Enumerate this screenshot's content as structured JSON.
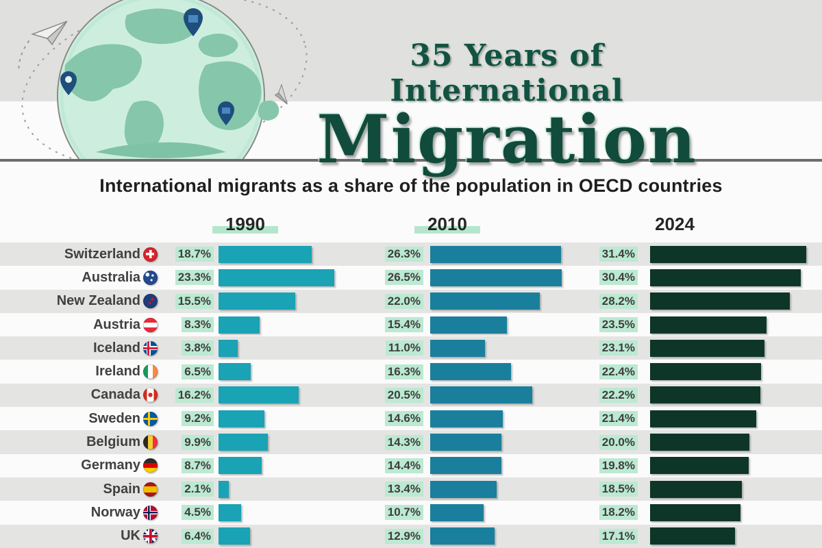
{
  "header": {
    "title_line1": "35 Years of International",
    "title_line2": "Migration",
    "illustration": {
      "globe_icon": "globe-with-continents",
      "pin_icon": "location-pin",
      "pin_count": 3,
      "plane_icon": "paper-plane",
      "orbit_icon": "dashed-orbit"
    }
  },
  "subtitle": "International migrants as a share of the population in OECD countries",
  "columns": [
    "1990",
    "2010",
    "2024"
  ],
  "colors": {
    "bar_1990": "#1aa2b5",
    "bar_2010": "#1a7f9c",
    "bar_2024": "#0e3628",
    "value_highlight": "#bce9d2",
    "title_green": "#135242",
    "stripe_gray": "#e4e4e3",
    "header_band_gray": "#e0e0de"
  },
  "chart_data": {
    "type": "bar",
    "orientation": "horizontal",
    "title": "35 Years of International Migration",
    "subtitle": "International migrants as a share of the population in OECD countries",
    "unit": "percent",
    "xlim": [
      0,
      32
    ],
    "grid": false,
    "legend_position": "column-headers-top",
    "categories": [
      "Switzerland",
      "Australia",
      "New Zealand",
      "Austria",
      "Iceland",
      "Ireland",
      "Canada",
      "Sweden",
      "Belgium",
      "Germany",
      "Spain",
      "Norway",
      "UK"
    ],
    "series": [
      {
        "name": "1990",
        "color": "#1aa2b5",
        "values": [
          18.7,
          23.3,
          15.5,
          8.3,
          3.8,
          6.5,
          16.2,
          9.2,
          9.9,
          8.7,
          2.1,
          4.5,
          6.4
        ]
      },
      {
        "name": "2010",
        "color": "#1a7f9c",
        "values": [
          26.3,
          26.5,
          22.0,
          15.4,
          11.0,
          16.3,
          20.5,
          14.6,
          14.3,
          14.4,
          13.4,
          10.7,
          12.9
        ]
      },
      {
        "name": "2024",
        "color": "#0e3628",
        "values": [
          31.4,
          30.4,
          28.2,
          23.5,
          23.1,
          22.4,
          22.2,
          21.4,
          20.0,
          19.8,
          18.5,
          18.2,
          17.1
        ]
      }
    ]
  },
  "table": {
    "rows": [
      {
        "country": "Switzerland",
        "flag": "ch"
      },
      {
        "country": "Australia",
        "flag": "au"
      },
      {
        "country": "New Zealand",
        "flag": "nz"
      },
      {
        "country": "Austria",
        "flag": "at"
      },
      {
        "country": "Iceland",
        "flag": "is"
      },
      {
        "country": "Ireland",
        "flag": "ie"
      },
      {
        "country": "Canada",
        "flag": "ca"
      },
      {
        "country": "Sweden",
        "flag": "se"
      },
      {
        "country": "Belgium",
        "flag": "be"
      },
      {
        "country": "Germany",
        "flag": "de"
      },
      {
        "country": "Spain",
        "flag": "es"
      },
      {
        "country": "Norway",
        "flag": "no"
      },
      {
        "country": "UK",
        "flag": "gb"
      }
    ]
  }
}
